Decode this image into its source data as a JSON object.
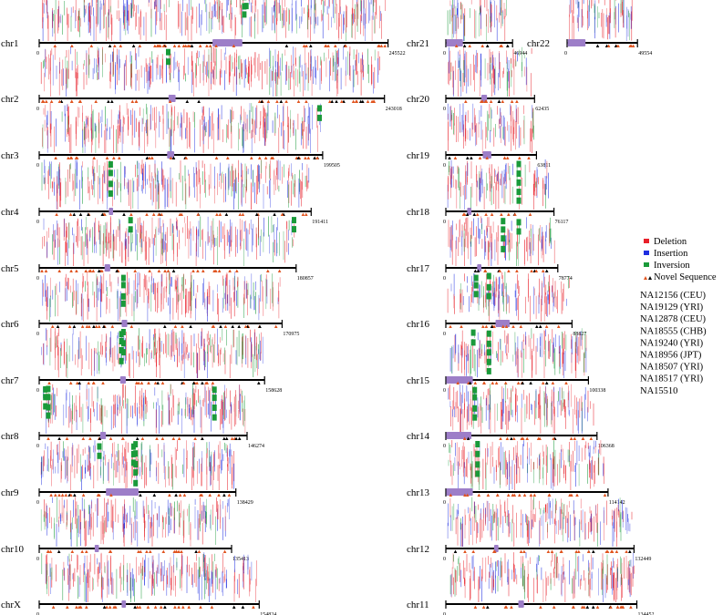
{
  "chart_data": {
    "type": "chromosome-variant-map",
    "title": "",
    "legend": {
      "types": [
        {
          "label": "Deletion",
          "color": "#e8202a"
        },
        {
          "label": "Insertion",
          "color": "#1f2ee0"
        },
        {
          "label": "Inversion",
          "color": "#1a9a3a"
        },
        {
          "label": "Novel Sequence",
          "color": "#e0541f",
          "color2": "#000000"
        }
      ],
      "samples": [
        "NA12156 (CEU)",
        "NA19129 (YRI)",
        "NA12878 (CEU)",
        "NA18555 (CHB)",
        "NA19240 (YRI)",
        "NA18956 (JPT)",
        "NA18507 (YRI)",
        "NA18517 (YRI)",
        "NA15510"
      ]
    },
    "centromere_color": "#9d7ec8",
    "chromosomes": [
      {
        "name": "chr1",
        "length": 245522,
        "centromere": [
          122000,
          143000
        ],
        "inversions": [
          144000,
          145500
        ]
      },
      {
        "name": "chr2",
        "length": 243018,
        "centromere": [
          91000,
          96000
        ],
        "inversions": [
          90500
        ]
      },
      {
        "name": "chr3",
        "length": 199505,
        "centromere": [
          90000,
          95000
        ],
        "inversions": [
          197000
        ]
      },
      {
        "name": "chr4",
        "length": 191411,
        "centromere": [
          49000,
          52000
        ],
        "inversions": [
          50000
        ]
      },
      {
        "name": "chr5",
        "length": 180857,
        "centromere": [
          46000,
          50000
        ],
        "inversions": [
          64000,
          179000
        ]
      },
      {
        "name": "chr6",
        "length": 170975,
        "centromere": [
          58000,
          62000
        ],
        "inversions": [
          59000
        ]
      },
      {
        "name": "chr7",
        "length": 158628,
        "centromere": [
          57000,
          61000
        ],
        "inversions": [
          57500,
          59000
        ]
      },
      {
        "name": "chr8",
        "length": 146274,
        "centromere": [
          43000,
          47000
        ],
        "inversions": [
          4000,
          6000,
          123000
        ]
      },
      {
        "name": "chr9",
        "length": 138429,
        "centromere": [
          47000,
          70000
        ],
        "inversions": [
          42000,
          66000,
          67500
        ]
      },
      {
        "name": "chr10",
        "length": 135413,
        "centromere": [
          39000,
          42000
        ],
        "inversions": []
      },
      {
        "name": "chrX",
        "length": 154824,
        "centromere": [
          58000,
          61000
        ],
        "inversions": []
      },
      {
        "name": "chr21",
        "length": 46944,
        "centromere": [
          400,
          12000
        ],
        "inversions": []
      },
      {
        "name": "chr22",
        "length": 49554,
        "centromere": [
          400,
          13000
        ],
        "inversions": []
      },
      {
        "name": "chr20",
        "length": 62435,
        "centromere": [
          25000,
          29000
        ],
        "inversions": []
      },
      {
        "name": "chr19",
        "length": 63811,
        "centromere": [
          26000,
          32000
        ],
        "inversions": []
      },
      {
        "name": "chr18",
        "length": 76117,
        "centromere": [
          15000,
          18000
        ],
        "inversions": [
          51000
        ]
      },
      {
        "name": "chr17",
        "length": 78774,
        "centromere": [
          22000,
          25000
        ],
        "inversions": [
          40000,
          51000
        ]
      },
      {
        "name": "chr16",
        "length": 88827,
        "centromere": [
          35000,
          45000
        ],
        "inversions": [
          21000,
          30000
        ]
      },
      {
        "name": "chr15",
        "length": 100338,
        "centromere": [
          300,
          19000
        ],
        "inversions": [
          19000,
          30000
        ]
      },
      {
        "name": "chr14",
        "length": 106368,
        "centromere": [
          300,
          18000
        ],
        "inversions": [
          20000
        ]
      },
      {
        "name": "chr13",
        "length": 114142,
        "centromere": [
          300,
          19000
        ],
        "inversions": [
          22000
        ]
      },
      {
        "name": "chr12",
        "length": 132449,
        "centromere": [
          34000,
          37000
        ],
        "inversions": []
      },
      {
        "name": "chr11",
        "length": 134452,
        "centromere": [
          51000,
          55000
        ],
        "inversions": []
      }
    ]
  }
}
